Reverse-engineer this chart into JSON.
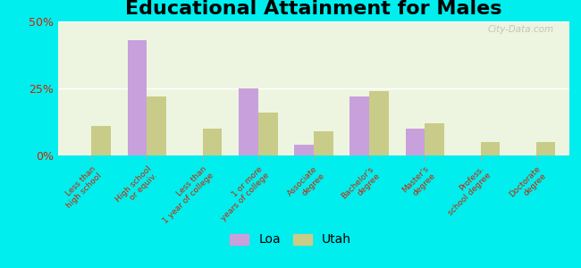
{
  "title": "Educational Attainment for Males",
  "categories": [
    "Less than\nhigh school",
    "High school\nor equiv.",
    "Less than\n1 year of college",
    "1 or more\nyears of college",
    "Associate\ndegree",
    "Bachelor's\ndegree",
    "Master's\ndegree",
    "Profess.\nschool degree",
    "Doctorate\ndegree"
  ],
  "loa_values": [
    0,
    43,
    0,
    25,
    4,
    22,
    10,
    0,
    0
  ],
  "utah_values": [
    11,
    22,
    10,
    16,
    9,
    24,
    12,
    5,
    5
  ],
  "loa_color": "#c8a0dc",
  "utah_color": "#c8cc88",
  "background_color": "#00eeee",
  "plot_bg_color": "#edf5e0",
  "ylim": [
    0,
    50
  ],
  "yticks": [
    0,
    25,
    50
  ],
  "ytick_labels": [
    "0%",
    "25%",
    "50%"
  ],
  "title_fontsize": 16,
  "watermark": "City-Data.com"
}
